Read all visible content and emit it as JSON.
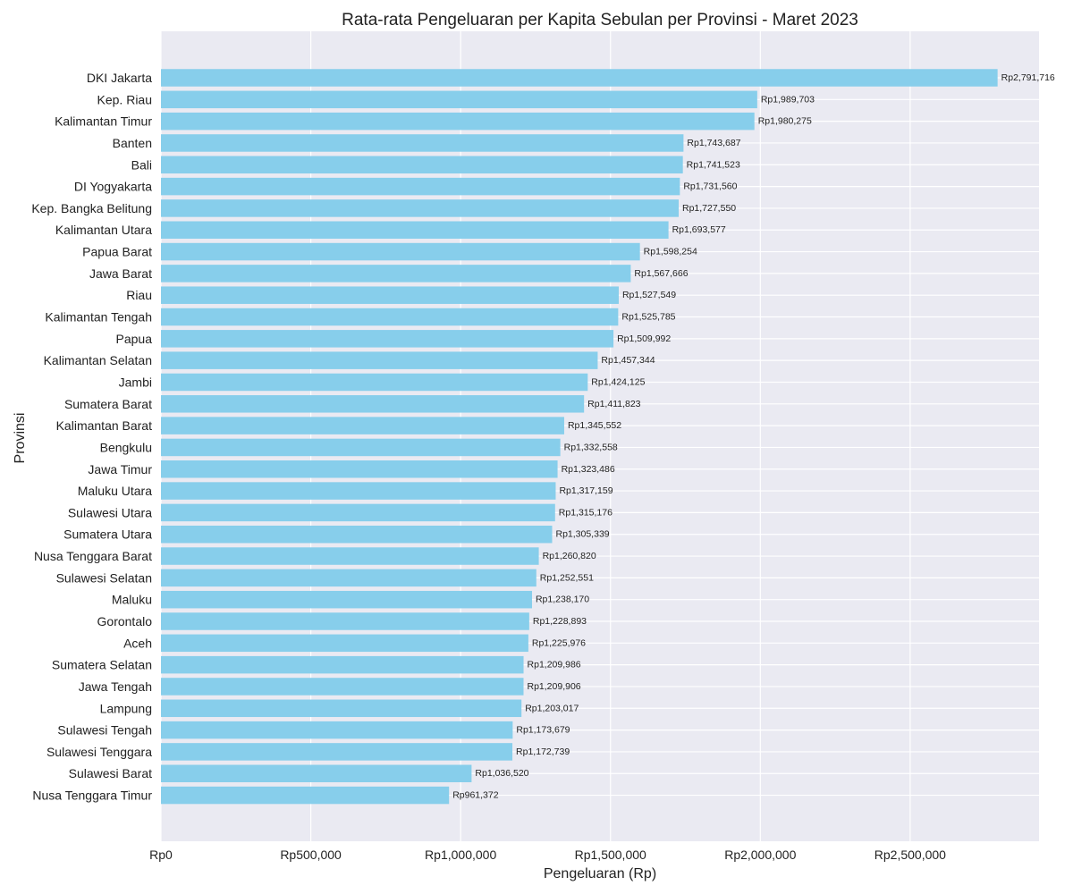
{
  "chart_data": {
    "type": "bar",
    "orientation": "horizontal",
    "title": "Rata-rata Pengeluaran per Kapita Sebulan per Provinsi - Maret 2023",
    "xlabel": "Pengeluaran (Rp)",
    "ylabel": "Provinsi",
    "xlim": [
      0,
      2930000
    ],
    "xticks": [
      0,
      500000,
      1000000,
      1500000,
      2000000,
      2500000
    ],
    "xtick_labels": [
      "Rp0",
      "Rp500,000",
      "Rp1,000,000",
      "Rp1,500,000",
      "Rp2,000,000",
      "Rp2,500,000"
    ],
    "grid": true,
    "bar_color": "#87CEEB",
    "background_color": "#EAEAF2",
    "categories": [
      "DKI Jakarta",
      "Kep. Riau",
      "Kalimantan Timur",
      "Banten",
      "Bali",
      "DI Yogyakarta",
      "Kep. Bangka Belitung",
      "Kalimantan Utara",
      "Papua Barat",
      "Jawa Barat",
      "Riau",
      "Kalimantan Tengah",
      "Papua",
      "Kalimantan Selatan",
      "Jambi",
      "Sumatera Barat",
      "Kalimantan Barat",
      "Bengkulu",
      "Jawa Timur",
      "Maluku Utara",
      "Sulawesi Utara",
      "Sumatera Utara",
      "Nusa Tenggara Barat",
      "Sulawesi Selatan",
      "Maluku",
      "Gorontalo",
      "Aceh",
      "Sumatera Selatan",
      "Jawa Tengah",
      "Lampung",
      "Sulawesi Tengah",
      "Sulawesi Tenggara",
      "Sulawesi Barat",
      "Nusa Tenggara Timur"
    ],
    "values": [
      2791716,
      1989703,
      1980275,
      1743687,
      1741523,
      1731560,
      1727550,
      1693577,
      1598254,
      1567666,
      1527549,
      1525785,
      1509992,
      1457344,
      1424125,
      1411823,
      1345552,
      1332558,
      1323486,
      1317159,
      1315176,
      1305339,
      1260820,
      1252551,
      1238170,
      1228893,
      1225976,
      1209986,
      1209906,
      1203017,
      1173679,
      1172739,
      1036520,
      961372
    ],
    "value_labels": [
      "Rp2,791,716",
      "Rp1,989,703",
      "Rp1,980,275",
      "Rp1,743,687",
      "Rp1,741,523",
      "Rp1,731,560",
      "Rp1,727,550",
      "Rp1,693,577",
      "Rp1,598,254",
      "Rp1,567,666",
      "Rp1,527,549",
      "Rp1,525,785",
      "Rp1,509,992",
      "Rp1,457,344",
      "Rp1,424,125",
      "Rp1,411,823",
      "Rp1,345,552",
      "Rp1,332,558",
      "Rp1,323,486",
      "Rp1,317,159",
      "Rp1,315,176",
      "Rp1,305,339",
      "Rp1,260,820",
      "Rp1,252,551",
      "Rp1,238,170",
      "Rp1,228,893",
      "Rp1,225,976",
      "Rp1,209,986",
      "Rp1,209,906",
      "Rp1,203,017",
      "Rp1,173,679",
      "Rp1,172,739",
      "Rp1,036,520",
      "Rp961,372"
    ]
  }
}
